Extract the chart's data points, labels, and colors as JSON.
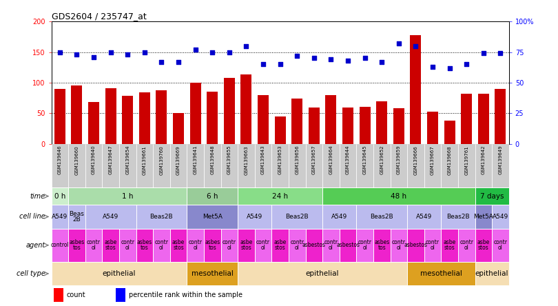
{
  "title": "GDS2604 / 235747_at",
  "samples": [
    "GSM139646",
    "GSM139660",
    "GSM139640",
    "GSM139647",
    "GSM139654",
    "GSM139661",
    "GSM139760",
    "GSM139669",
    "GSM139641",
    "GSM139648",
    "GSM139655",
    "GSM139663",
    "GSM139643",
    "GSM139653",
    "GSM139656",
    "GSM139657",
    "GSM139664",
    "GSM139644",
    "GSM139645",
    "GSM139652",
    "GSM139659",
    "GSM139666",
    "GSM139667",
    "GSM139668",
    "GSM139761",
    "GSM139642",
    "GSM139649"
  ],
  "counts": [
    90,
    95,
    68,
    91,
    79,
    84,
    88,
    50,
    100,
    85,
    108,
    113,
    80,
    45,
    74,
    60,
    80,
    60,
    61,
    70,
    58,
    178,
    53,
    38,
    82,
    82,
    90
  ],
  "percentile": [
    75,
    73,
    71,
    75,
    73,
    75,
    67,
    67,
    77,
    75,
    75,
    80,
    65,
    65,
    72,
    70,
    69,
    68,
    70,
    67,
    82,
    80,
    63,
    62,
    65,
    74,
    74
  ],
  "bar_color": "#cc0000",
  "dot_color": "#0000cc",
  "left_ylim": [
    0,
    200
  ],
  "right_ylim": [
    0,
    100
  ],
  "left_yticks": [
    0,
    50,
    100,
    150,
    200
  ],
  "right_yticks": [
    0,
    25,
    50,
    75,
    100
  ],
  "right_yticklabels": [
    "0",
    "25",
    "50",
    "75",
    "100%"
  ],
  "hlines": [
    50,
    100,
    150
  ],
  "time_segs": [
    [
      0,
      1,
      "0 h",
      "#cceecc"
    ],
    [
      1,
      8,
      "1 h",
      "#aaddaa"
    ],
    [
      8,
      11,
      "6 h",
      "#99cc99"
    ],
    [
      11,
      16,
      "24 h",
      "#88dd88"
    ],
    [
      16,
      25,
      "48 h",
      "#55cc55"
    ],
    [
      25,
      27,
      "7 days",
      "#22bb44"
    ]
  ],
  "cell_line_segs": [
    [
      0,
      1,
      "A549",
      "#bbbbee"
    ],
    [
      1,
      2,
      "Beas\n2B",
      "#bbbbee"
    ],
    [
      2,
      5,
      "A549",
      "#bbbbee"
    ],
    [
      5,
      8,
      "Beas2B",
      "#bbbbee"
    ],
    [
      8,
      11,
      "Met5A",
      "#8888cc"
    ],
    [
      11,
      13,
      "A549",
      "#bbbbee"
    ],
    [
      13,
      16,
      "Beas2B",
      "#bbbbee"
    ],
    [
      16,
      18,
      "A549",
      "#bbbbee"
    ],
    [
      18,
      21,
      "Beas2B",
      "#bbbbee"
    ],
    [
      21,
      23,
      "A549",
      "#bbbbee"
    ],
    [
      23,
      25,
      "Beas2B",
      "#bbbbee"
    ],
    [
      25,
      26,
      "Met5A",
      "#8888cc"
    ],
    [
      26,
      27,
      "A549",
      "#bbbbee"
    ]
  ],
  "agent_segs": [
    [
      0,
      1,
      "control",
      "#ee66ee"
    ],
    [
      1,
      2,
      "asbes\ntos",
      "#ee22cc"
    ],
    [
      2,
      3,
      "contr\nol",
      "#ee66ee"
    ],
    [
      3,
      4,
      "asbe\nstos",
      "#ee22cc"
    ],
    [
      4,
      5,
      "contr\nol",
      "#ee66ee"
    ],
    [
      5,
      6,
      "asbes\ntos",
      "#ee22cc"
    ],
    [
      6,
      7,
      "contr\nol",
      "#ee66ee"
    ],
    [
      7,
      8,
      "asbe\nstos",
      "#ee22cc"
    ],
    [
      8,
      9,
      "contr\nol",
      "#ee66ee"
    ],
    [
      9,
      10,
      "asbes\ntos",
      "#ee22cc"
    ],
    [
      10,
      11,
      "contr\nol",
      "#ee66ee"
    ],
    [
      11,
      12,
      "asbe\nstos",
      "#ee22cc"
    ],
    [
      12,
      13,
      "contr\nol",
      "#ee66ee"
    ],
    [
      13,
      14,
      "asbe\nstos",
      "#ee22cc"
    ],
    [
      14,
      15,
      "contr\nol",
      "#ee66ee"
    ],
    [
      15,
      16,
      "asbestos",
      "#ee22cc"
    ],
    [
      16,
      17,
      "contr\nol",
      "#ee66ee"
    ],
    [
      17,
      18,
      "asbestos",
      "#ee22cc"
    ],
    [
      18,
      19,
      "contr\nol",
      "#ee66ee"
    ],
    [
      19,
      20,
      "asbes\ntos",
      "#ee22cc"
    ],
    [
      20,
      21,
      "contr\nol",
      "#ee66ee"
    ],
    [
      21,
      22,
      "asbestos",
      "#ee22cc"
    ],
    [
      22,
      23,
      "contr\nol",
      "#ee66ee"
    ],
    [
      23,
      24,
      "asbe\nstos",
      "#ee22cc"
    ],
    [
      24,
      25,
      "contr\nol",
      "#ee66ee"
    ],
    [
      25,
      26,
      "asbe\nstos",
      "#ee22cc"
    ],
    [
      26,
      27,
      "contr\nol",
      "#ee66ee"
    ]
  ],
  "cell_type_segs": [
    [
      0,
      8,
      "epithelial",
      "#f5deb3"
    ],
    [
      8,
      11,
      "mesothelial",
      "#dda020"
    ],
    [
      11,
      21,
      "epithelial",
      "#f5deb3"
    ],
    [
      21,
      25,
      "mesothelial",
      "#dda020"
    ],
    [
      25,
      27,
      "epithelial",
      "#f5deb3"
    ]
  ],
  "row_labels": [
    "time",
    "cell line",
    "agent",
    "cell type"
  ],
  "background": "#ffffff",
  "label_bg": "#cccccc"
}
